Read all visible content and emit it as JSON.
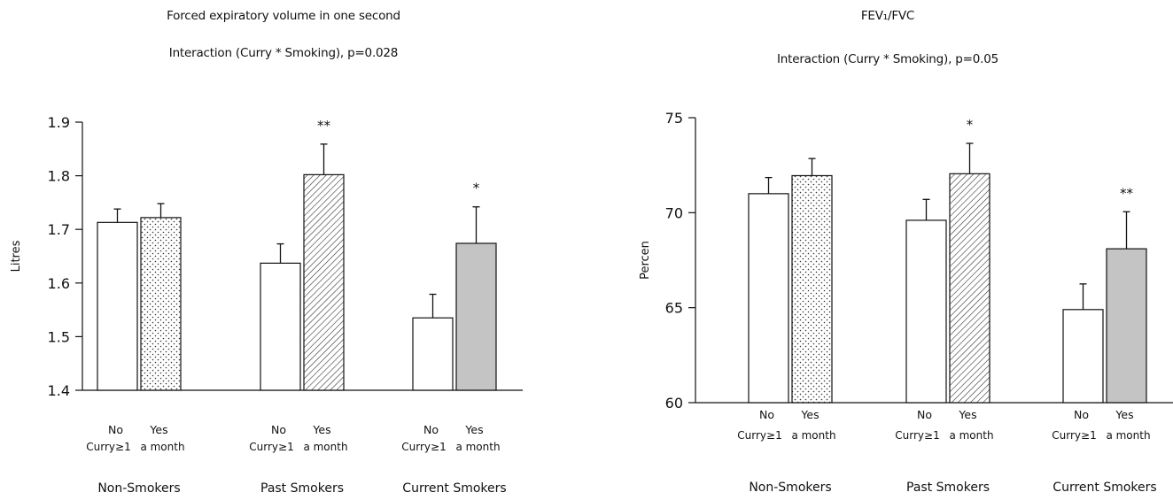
{
  "chart_data": [
    {
      "type": "bar",
      "title": "Forced expiratory volume in one second",
      "subtitle": "Interaction (Curry * Smoking), p=0.028",
      "ylabel": "Litres",
      "ylim": [
        1.4,
        1.9
      ],
      "yticks": [
        1.4,
        1.5,
        1.6,
        1.7,
        1.8,
        1.9
      ],
      "categories": [
        "Non-Smokers",
        "Past Smokers",
        "Current Smokers"
      ],
      "bar_labels": {
        "no": [
          "No",
          "Curry≥1"
        ],
        "yes": [
          "Yes",
          "a month"
        ]
      },
      "series": [
        {
          "values": [
            1.713,
            1.637,
            1.535
          ],
          "errors": [
            0.025,
            0.036,
            0.044
          ]
        },
        {
          "values": [
            1.722,
            1.802,
            1.674
          ],
          "errors": [
            0.026,
            0.057,
            0.068
          ]
        }
      ],
      "significance": [
        "",
        "**",
        "*"
      ],
      "fills": [
        "white",
        "dots",
        "hatch",
        "gray"
      ]
    },
    {
      "type": "bar",
      "title": "FEV₁/FVC",
      "subtitle": "Interaction (Curry * Smoking), p=0.05",
      "ylabel": "Percen",
      "ylim": [
        60,
        75
      ],
      "yticks": [
        60,
        65,
        70,
        75
      ],
      "categories": [
        "Non-Smokers",
        "Past Smokers",
        "Current Smokers"
      ],
      "bar_labels": {
        "no": [
          "No",
          "Curry≥1"
        ],
        "yes": [
          "Yes",
          "a month"
        ]
      },
      "series": [
        {
          "values": [
            71.0,
            69.6,
            64.9
          ],
          "errors": [
            0.85,
            1.1,
            1.35
          ]
        },
        {
          "values": [
            71.95,
            72.05,
            68.1
          ],
          "errors": [
            0.9,
            1.6,
            1.95
          ]
        }
      ],
      "significance": [
        "",
        "*",
        "**"
      ],
      "fills": [
        "white",
        "dots",
        "hatch",
        "gray"
      ]
    }
  ]
}
